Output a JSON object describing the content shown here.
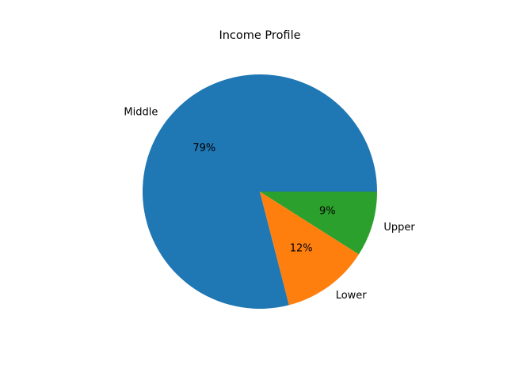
{
  "chart_data": {
    "type": "pie",
    "title": "Income Profile",
    "slices": [
      {
        "label": "Middle",
        "value": 79,
        "pct_label": "79%",
        "color": "#1f77b4"
      },
      {
        "label": "Lower",
        "value": 12,
        "pct_label": "12%",
        "color": "#ff7f0e"
      },
      {
        "label": "Upper",
        "value": 9,
        "pct_label": "9%",
        "color": "#2ca02c"
      }
    ]
  }
}
